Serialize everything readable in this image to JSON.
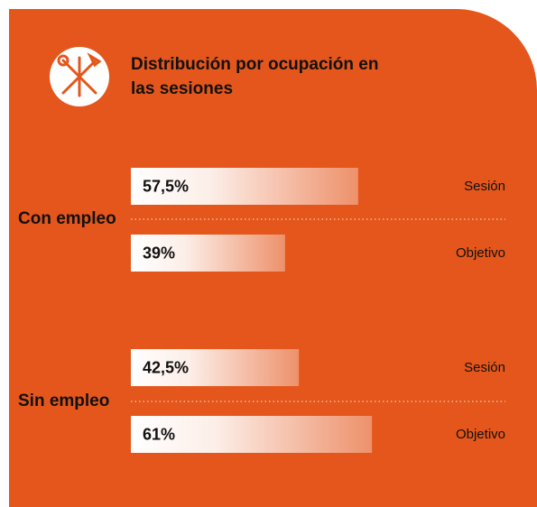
{
  "chart_data": {
    "type": "bar",
    "orientation": "horizontal",
    "title": "Distribución por ocupación en las sesiones",
    "categories": [
      "Con empleo",
      "Sin empleo"
    ],
    "series": [
      {
        "name": "Sesión",
        "color": "#ffffff",
        "values": [
          57.5,
          42.5
        ],
        "value_labels": [
          "57,5%",
          "42,5%"
        ]
      },
      {
        "name": "Objetivo",
        "color": "#ffffff",
        "values": [
          39,
          61
        ],
        "value_labels": [
          "39%",
          "61%"
        ]
      }
    ],
    "background": "#e4561b"
  }
}
